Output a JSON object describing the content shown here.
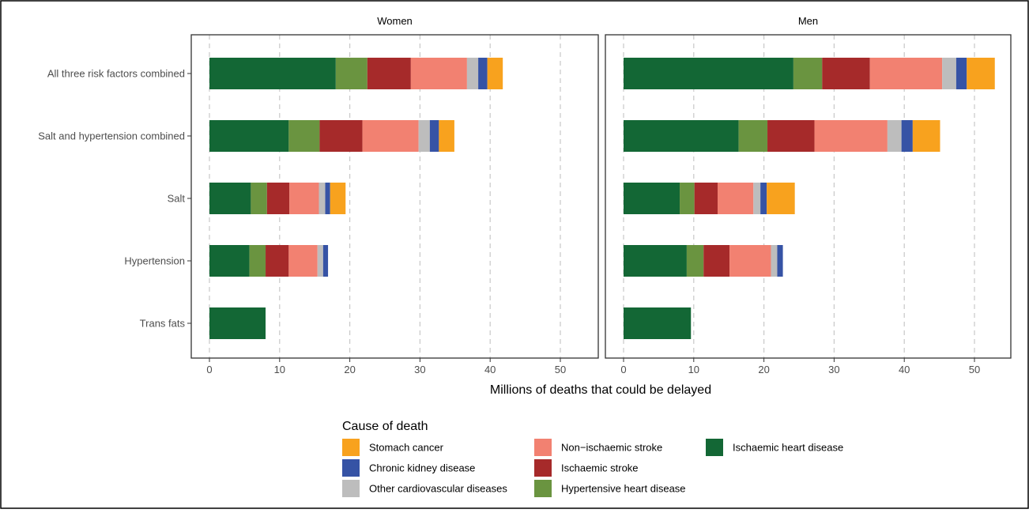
{
  "chart_data": {
    "type": "bar",
    "orientation": "horizontal",
    "stacked": true,
    "xlabel": "Millions of deaths that could be delayed",
    "xlim": [
      -2.5,
      55
    ],
    "xticks": [
      0,
      10,
      20,
      30,
      40,
      50
    ],
    "grid": "vertical dashed",
    "categories": [
      "All three risk factors combined",
      "Salt and hypertension combined",
      "Salt",
      "Hypertension",
      "Trans fats"
    ],
    "panels": [
      {
        "name": "Women",
        "series": [
          {
            "name": "Ischaemic heart disease",
            "values": [
              18.0,
              11.3,
              5.9,
              5.7,
              8.0
            ]
          },
          {
            "name": "Hypertensive heart disease",
            "values": [
              4.5,
              4.4,
              2.3,
              2.3,
              0
            ]
          },
          {
            "name": "Ischaemic stroke",
            "values": [
              6.2,
              6.1,
              3.2,
              3.3,
              0
            ]
          },
          {
            "name": "Non−ischaemic stroke",
            "values": [
              8.0,
              8.0,
              4.2,
              4.1,
              0
            ]
          },
          {
            "name": "Other cardiovascular diseases",
            "values": [
              1.6,
              1.6,
              0.9,
              0.8,
              0
            ]
          },
          {
            "name": "Chronic kidney disease",
            "values": [
              1.3,
              1.3,
              0.7,
              0.7,
              0
            ]
          },
          {
            "name": "Stomach cancer",
            "values": [
              2.2,
              2.2,
              2.2,
              0,
              0
            ]
          }
        ]
      },
      {
        "name": "Men",
        "series": [
          {
            "name": "Ischaemic heart disease",
            "values": [
              24.2,
              16.4,
              8.0,
              9.0,
              9.6
            ]
          },
          {
            "name": "Hypertensive heart disease",
            "values": [
              4.1,
              4.1,
              2.1,
              2.4,
              0
            ]
          },
          {
            "name": "Ischaemic stroke",
            "values": [
              6.8,
              6.7,
              3.3,
              3.7,
              0
            ]
          },
          {
            "name": "Non−ischaemic stroke",
            "values": [
              10.3,
              10.4,
              5.1,
              5.9,
              0
            ]
          },
          {
            "name": "Other cardiovascular diseases",
            "values": [
              2.0,
              2.0,
              1.0,
              0.9,
              0
            ]
          },
          {
            "name": "Chronic kidney disease",
            "values": [
              1.5,
              1.6,
              0.9,
              0.8,
              0
            ]
          },
          {
            "name": "Stomach cancer",
            "values": [
              4.0,
              3.9,
              4.0,
              0,
              0
            ]
          }
        ]
      }
    ],
    "colors": {
      "Ischaemic heart disease": "#136735",
      "Hypertensive heart disease": "#6a9440",
      "Ischaemic stroke": "#a62a2a",
      "Non−ischaemic stroke": "#f28171",
      "Other cardiovascular diseases": "#bdbdbd",
      "Chronic kidney disease": "#3653a5",
      "Stomach cancer": "#f8a21e"
    },
    "legend": {
      "title": "Cause of death",
      "placement": "bottom",
      "columns": [
        [
          "Stomach cancer",
          "Chronic kidney disease",
          "Other cardiovascular diseases"
        ],
        [
          "Non−ischaemic stroke",
          "Ischaemic stroke",
          "Hypertensive heart disease"
        ],
        [
          "Ischaemic heart disease"
        ]
      ]
    }
  }
}
